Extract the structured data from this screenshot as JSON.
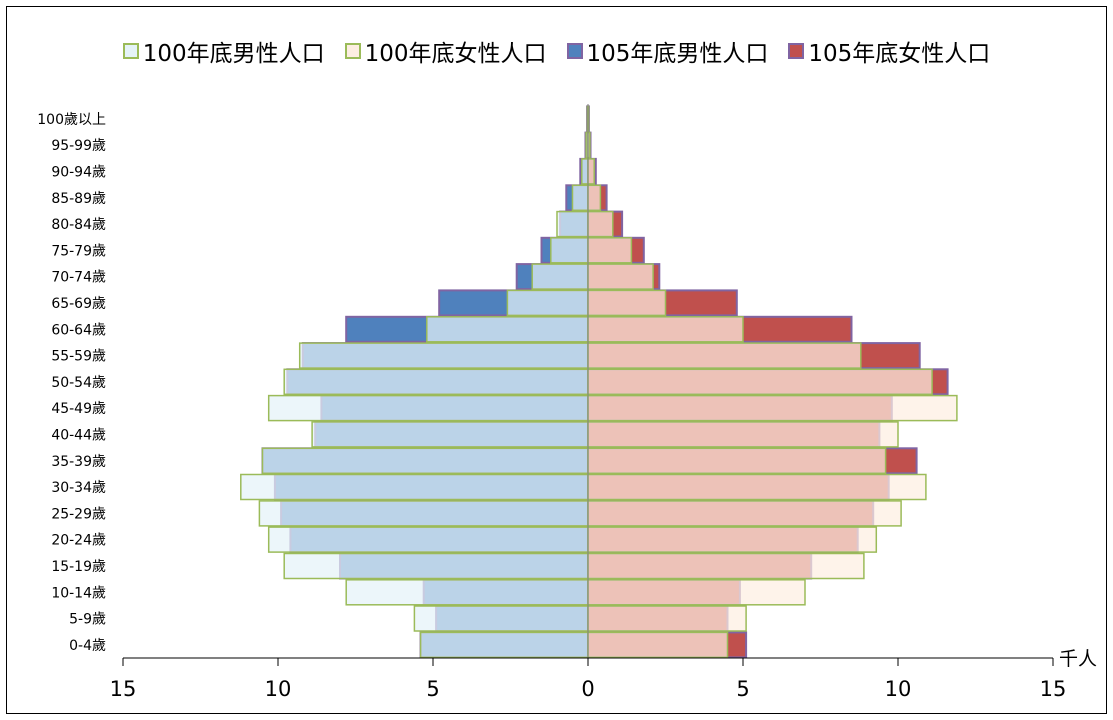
{
  "chart_data": {
    "type": "bar",
    "orientation": "horizontal",
    "layout": "population-pyramid",
    "xlabel": "千人",
    "xlim": [
      0,
      15
    ],
    "xticks": [
      15,
      10,
      5,
      0,
      5,
      10,
      15
    ],
    "categories": [
      "0-4歲",
      "5-9歲",
      "10-14歲",
      "15-19歲",
      "20-24歲",
      "25-29歲",
      "30-34歲",
      "35-39歲",
      "40-44歲",
      "45-49歲",
      "50-54歲",
      "55-59歲",
      "60-64歲",
      "65-69歲",
      "70-74歲",
      "75-79歲",
      "80-84歲",
      "85-89歲",
      "90-94歲",
      "95-99歲",
      "100歲以上"
    ],
    "series": [
      {
        "name": "100年底男性人口",
        "side": "left",
        "fill": "#E5F3F8",
        "stroke": "#9BBB59",
        "values": [
          5.4,
          5.6,
          7.8,
          9.8,
          10.3,
          10.6,
          11.2,
          10.5,
          8.9,
          10.3,
          9.8,
          9.3,
          5.2,
          2.6,
          1.8,
          1.2,
          1.0,
          0.5,
          0.2,
          0.06,
          0.02
        ]
      },
      {
        "name": "100年底女性人口",
        "side": "right",
        "fill": "#FDEEE2",
        "stroke": "#9BBB59",
        "values": [
          4.5,
          5.1,
          7.0,
          8.9,
          9.3,
          10.1,
          10.9,
          9.6,
          10.0,
          11.9,
          11.1,
          8.8,
          5.0,
          2.5,
          2.1,
          1.4,
          0.8,
          0.4,
          0.2,
          0.06,
          0.02
        ]
      },
      {
        "name": "105年底男性人口",
        "side": "left",
        "fill": "#4F81BD",
        "stroke": "#8064A2",
        "values": [
          5.4,
          4.9,
          5.3,
          8.0,
          9.6,
          9.9,
          10.1,
          10.5,
          8.8,
          8.6,
          9.7,
          9.2,
          7.8,
          4.8,
          2.3,
          1.5,
          0.9,
          0.7,
          0.25,
          0.08,
          0.03
        ]
      },
      {
        "name": "105年底女性人口",
        "side": "right",
        "fill": "#C0504D",
        "stroke": "#8064A2",
        "values": [
          5.1,
          4.5,
          4.9,
          7.2,
          8.7,
          9.2,
          9.7,
          10.6,
          9.4,
          9.8,
          11.6,
          10.7,
          8.5,
          4.8,
          2.3,
          1.8,
          1.1,
          0.6,
          0.25,
          0.08,
          0.03
        ]
      }
    ]
  }
}
